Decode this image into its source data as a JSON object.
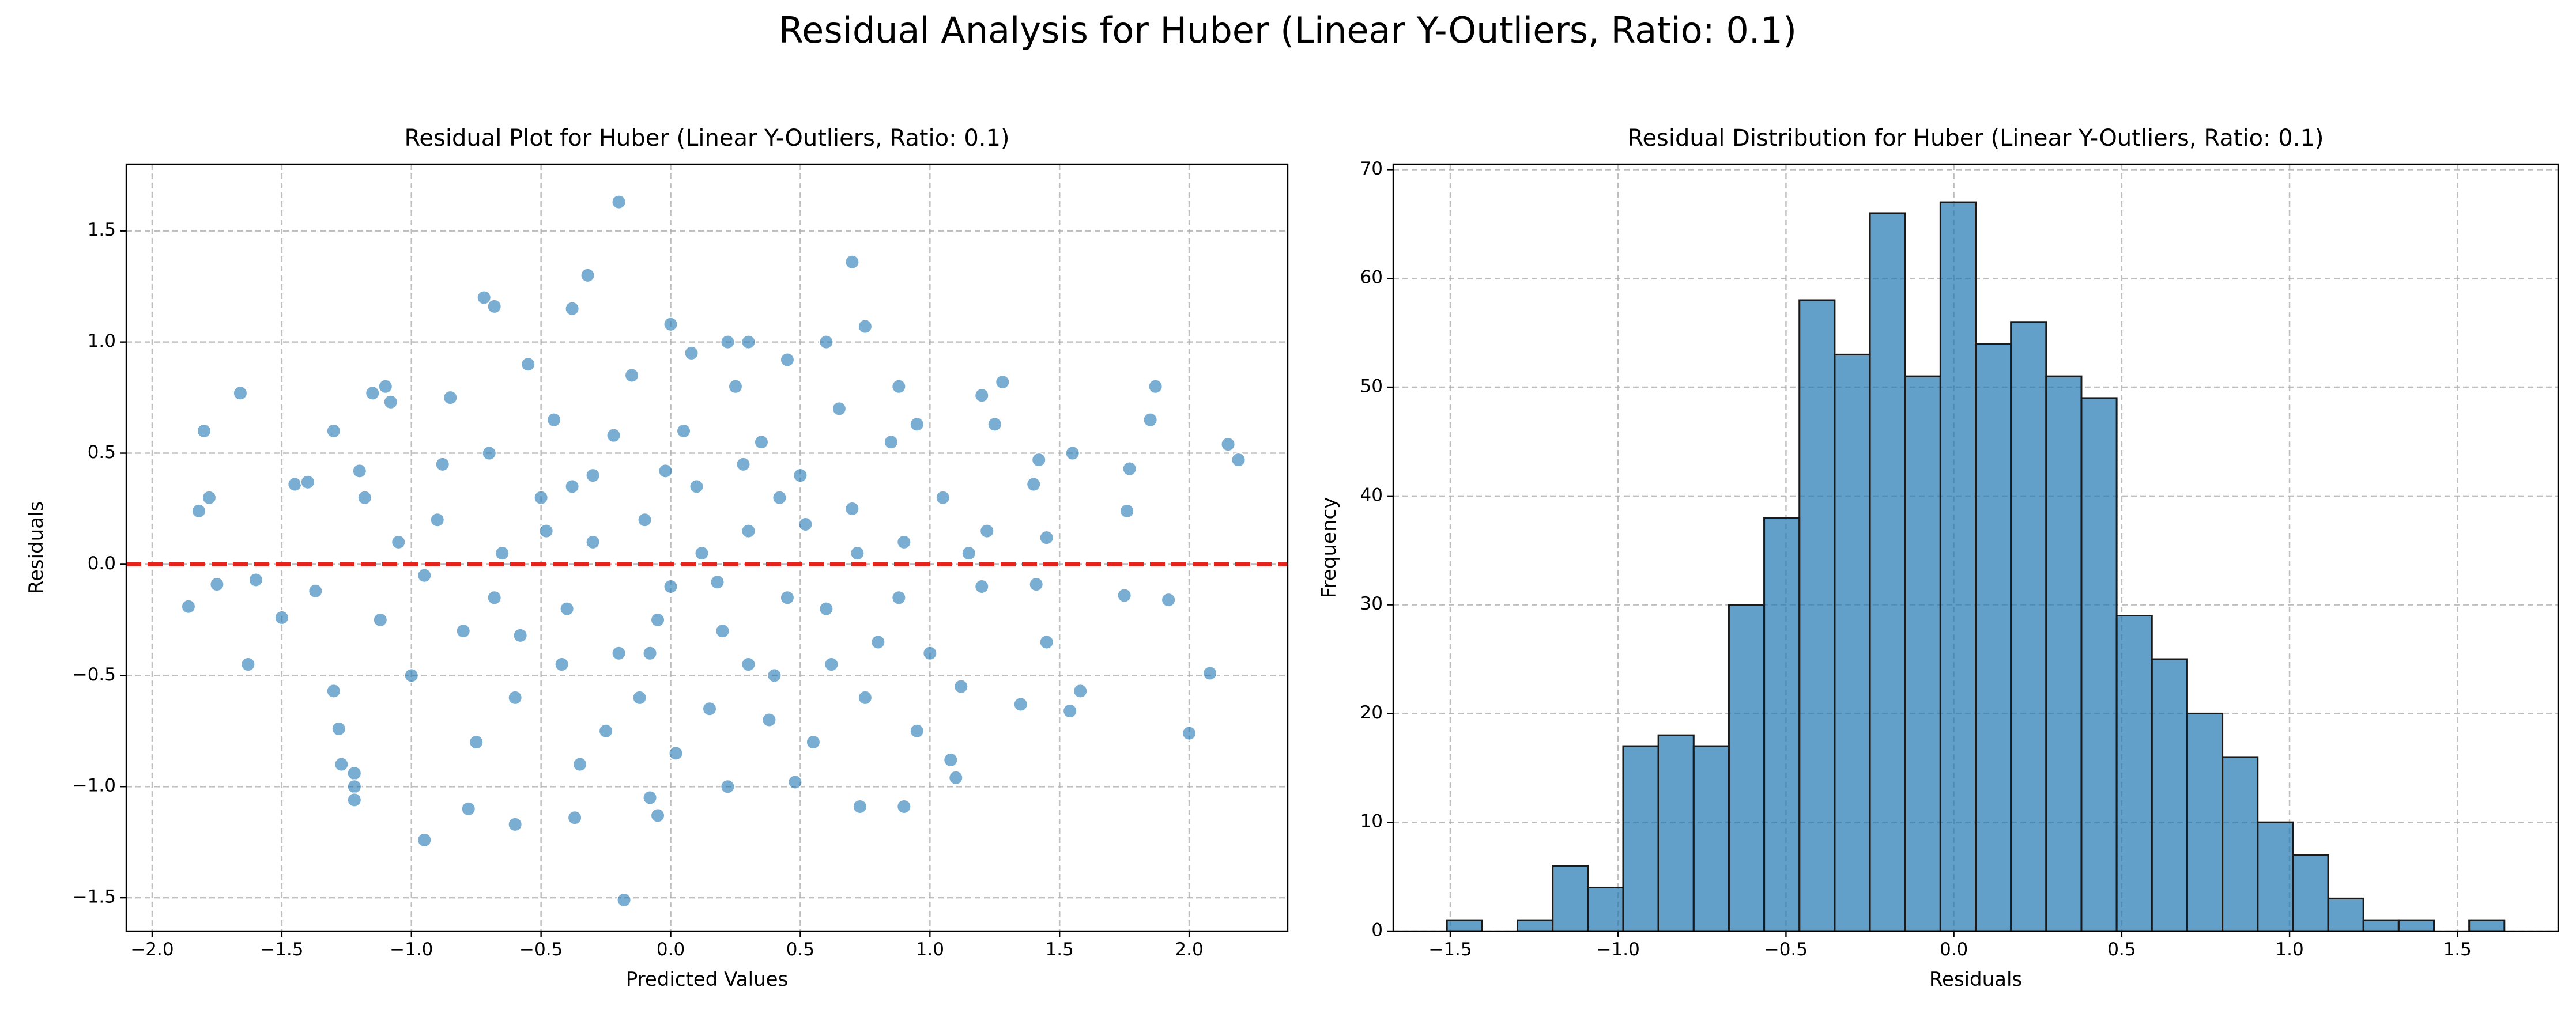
{
  "title": "Residual Analysis for Huber (Linear Y-Outliers, Ratio: 0.1)",
  "chart_data": [
    {
      "type": "scatter",
      "title": "Residual Plot for Huber (Linear Y-Outliers, Ratio: 0.1)",
      "xlabel": "Predicted Values",
      "ylabel": "Residuals",
      "color": "#1f77b4",
      "grid": true,
      "hline": 0,
      "hline_color": "#e8231c",
      "xlim": [
        -2.1,
        2.38
      ],
      "ylim": [
        -1.65,
        1.8
      ],
      "xticks": [
        {
          "value": -2,
          "label": "−2.0"
        },
        {
          "value": -1.5,
          "label": "−1.5"
        },
        {
          "value": -1,
          "label": "−1.0"
        },
        {
          "value": -0.5,
          "label": "−0.5"
        },
        {
          "value": 0,
          "label": "0.0"
        },
        0.5,
        {
          "value": 1,
          "label": "1.0"
        },
        1.5,
        {
          "value": 2,
          "label": "2.0"
        }
      ],
      "yticks": [
        {
          "value": -1.5,
          "label": "−1.5"
        },
        {
          "value": -1,
          "label": "−1.0"
        },
        {
          "value": -0.5,
          "label": "−0.5"
        },
        {
          "value": 0,
          "label": "0.0"
        },
        0.5,
        {
          "value": 1,
          "label": "1.0"
        },
        1.5
      ],
      "x": [
        -0.2,
        0.7,
        -0.32,
        -0.72,
        -0.68,
        -0.38,
        0.75,
        0.0,
        -1.86,
        -1.82,
        -1.8,
        -1.78,
        -1.75,
        -1.66,
        -1.63,
        -1.6,
        -1.5,
        -1.45,
        -1.4,
        -1.37,
        -1.3,
        -1.3,
        -1.28,
        -1.27,
        -1.22,
        -1.22,
        -1.22,
        -1.2,
        -1.15,
        -1.1,
        -1.08,
        -0.95,
        -0.78,
        -0.6,
        -0.37,
        -0.18,
        -0.08,
        -0.05,
        0.22,
        0.48,
        0.73,
        0.9,
        1.1,
        1.08,
        1.35,
        1.45,
        1.54,
        1.58,
        1.75,
        1.76,
        1.77,
        1.85,
        1.87,
        1.92,
        2.0,
        2.08,
        2.15,
        2.19,
        1.55,
        1.4,
        1.42,
        1.28,
        1.2,
        1.25,
        1.45,
        1.41,
        1.2,
        1.15,
        0.95,
        0.88,
        0.6,
        0.3,
        0.22,
        0.45,
        -0.5,
        -0.4,
        -0.3,
        -0.2,
        -0.1,
        0.0,
        0.1,
        0.2,
        0.3,
        0.4,
        0.5,
        0.6,
        0.7,
        0.8,
        -0.6,
        -0.7,
        -0.8,
        -0.9,
        -1.0,
        0.9,
        1.0,
        -0.45,
        -0.25,
        0.05,
        0.15,
        0.35,
        0.55,
        -0.15,
        0.25,
        -0.55,
        0.65,
        -0.35,
        0.45,
        -0.05,
        0.12,
        -0.65,
        -0.75,
        0.85,
        -1.05,
        1.05,
        -0.95,
        0.75,
        -0.85,
        0.95,
        -0.3,
        0.3,
        -0.12,
        0.08,
        -0.42,
        0.52,
        -0.58,
        0.62,
        -0.22,
        0.18,
        -0.02,
        0.42,
        -0.68,
        0.72,
        -0.88,
        0.88,
        1.12,
        -1.12,
        1.22,
        -1.18,
        0.02,
        -0.48,
        0.28,
        -0.08,
        0.38,
        -0.38
      ],
      "values": [
        1.63,
        1.36,
        1.3,
        1.2,
        1.16,
        1.15,
        1.07,
        1.08,
        -0.19,
        0.24,
        0.6,
        0.3,
        -0.09,
        0.77,
        -0.45,
        -0.07,
        -0.24,
        0.36,
        0.37,
        -0.12,
        0.6,
        -0.57,
        -0.74,
        -0.9,
        -0.94,
        -1.0,
        -1.06,
        0.42,
        0.77,
        0.8,
        0.73,
        -1.24,
        -1.1,
        -1.17,
        -1.14,
        -1.51,
        -1.05,
        -1.13,
        -1.0,
        -0.98,
        -1.09,
        -1.09,
        -0.96,
        -0.88,
        -0.63,
        -0.35,
        -0.66,
        -0.57,
        -0.14,
        0.24,
        0.43,
        0.65,
        0.8,
        -0.16,
        -0.76,
        -0.49,
        0.54,
        0.47,
        0.5,
        0.36,
        0.47,
        0.82,
        0.76,
        0.63,
        0.12,
        -0.09,
        -0.1,
        0.05,
        0.63,
        0.8,
        1.0,
        1.0,
        1.0,
        0.92,
        0.3,
        -0.2,
        0.1,
        -0.4,
        0.2,
        -0.1,
        0.35,
        -0.3,
        0.15,
        -0.5,
        0.4,
        -0.2,
        0.25,
        -0.35,
        -0.6,
        0.5,
        -0.3,
        0.2,
        -0.5,
        0.1,
        -0.4,
        0.65,
        -0.75,
        0.6,
        -0.65,
        0.55,
        -0.8,
        0.85,
        0.8,
        0.9,
        0.7,
        -0.9,
        -0.15,
        -0.25,
        0.05,
        0.05,
        -0.8,
        0.55,
        0.1,
        0.3,
        -0.05,
        -0.6,
        0.75,
        -0.75,
        0.4,
        -0.45,
        -0.6,
        0.95,
        -0.45,
        0.18,
        -0.32,
        -0.45,
        0.58,
        -0.08,
        0.42,
        0.3,
        -0.15,
        0.05,
        0.45,
        -0.15,
        -0.55,
        -0.25,
        0.15,
        0.3,
        -0.85,
        0.15,
        0.45,
        -0.4,
        -0.7,
        0.35
      ]
    },
    {
      "type": "histogram",
      "title": "Residual Distribution for Huber (Linear Y-Outliers, Ratio: 0.1)",
      "xlabel": "Residuals",
      "ylabel": "Frequency",
      "color": "#1f77b4",
      "edgecolor": "#1a1a1a",
      "grid": true,
      "xlim": [
        -1.67,
        1.8
      ],
      "ylim": [
        0,
        70.5
      ],
      "xticks": [
        {
          "value": -1.5,
          "label": "−1.5"
        },
        {
          "value": -1,
          "label": "−1.0"
        },
        {
          "value": -0.5,
          "label": "−0.5"
        },
        {
          "value": 0,
          "label": "0.0"
        },
        0.5,
        {
          "value": 1,
          "label": "1.0"
        },
        1.5
      ],
      "yticks": [
        0,
        10,
        20,
        30,
        40,
        50,
        60,
        70
      ],
      "bins": [
        -1.51,
        -1.405,
        -1.3,
        -1.195,
        -1.09,
        -0.985,
        -0.88,
        -0.775,
        -0.67,
        -0.565,
        -0.46,
        -0.355,
        -0.25,
        -0.145,
        -0.04,
        0.065,
        0.17,
        0.275,
        0.38,
        0.485,
        0.59,
        0.695,
        0.8,
        0.905,
        1.01,
        1.115,
        1.22,
        1.325,
        1.43,
        1.535,
        1.64
      ],
      "values": [
        1,
        0,
        1,
        6,
        4,
        17,
        18,
        17,
        30,
        38,
        58,
        53,
        66,
        51,
        67,
        54,
        56,
        51,
        49,
        29,
        25,
        20,
        16,
        10,
        7,
        3,
        1,
        1,
        0,
        1
      ]
    }
  ]
}
